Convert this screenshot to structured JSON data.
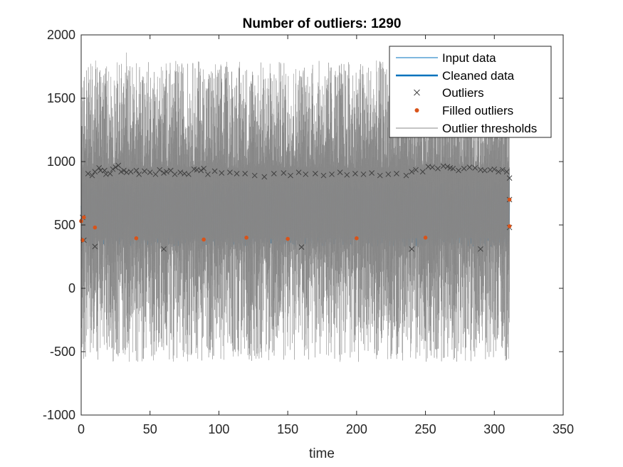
{
  "chart_data": {
    "type": "line",
    "title": "Number of outliers: 1290",
    "xlabel": "time",
    "ylabel": "",
    "xlim": [
      0,
      350
    ],
    "ylim": [
      -1000,
      2000
    ],
    "xticks": [
      0,
      50,
      100,
      150,
      200,
      250,
      300,
      350
    ],
    "yticks": [
      -1000,
      -500,
      0,
      500,
      1000,
      1500,
      2000
    ],
    "grid": false,
    "legend_position": "top-right",
    "x_range_of_data": [
      0,
      311
    ],
    "series": [
      {
        "name": "Input data",
        "color": "#0072BD",
        "style": "thin line",
        "typical_range": [
          330,
          850
        ],
        "peaks": [
          [
            0,
            860
          ],
          [
            6,
            880
          ],
          [
            89,
            900
          ],
          [
            120,
            850
          ],
          [
            240,
            880
          ],
          [
            311,
            900
          ]
        ]
      },
      {
        "name": "Cleaned data",
        "color": "#0072BD",
        "style": "thick line",
        "typical_range": [
          330,
          850
        ]
      },
      {
        "name": "Outliers",
        "color": "#404040",
        "marker": "x",
        "points": [
          [
            1,
            560
          ],
          [
            2,
            380
          ],
          [
            5,
            905
          ],
          [
            8,
            890
          ],
          [
            10,
            920
          ],
          [
            13,
            950
          ],
          [
            14,
            930
          ],
          [
            17,
            930
          ],
          [
            18,
            900
          ],
          [
            21,
            905
          ],
          [
            23,
            940
          ],
          [
            25,
            955
          ],
          [
            27,
            970
          ],
          [
            29,
            920
          ],
          [
            31,
            930
          ],
          [
            33,
            915
          ],
          [
            36,
            920
          ],
          [
            40,
            930
          ],
          [
            42,
            900
          ],
          [
            46,
            925
          ],
          [
            50,
            915
          ],
          [
            54,
            900
          ],
          [
            57,
            935
          ],
          [
            60,
            910
          ],
          [
            62,
            920
          ],
          [
            65,
            930
          ],
          [
            68,
            900
          ],
          [
            72,
            915
          ],
          [
            75,
            905
          ],
          [
            78,
            900
          ],
          [
            82,
            940
          ],
          [
            84,
            935
          ],
          [
            87,
            930
          ],
          [
            89,
            945
          ],
          [
            92,
            900
          ],
          [
            97,
            925
          ],
          [
            102,
            910
          ],
          [
            108,
            915
          ],
          [
            113,
            905
          ],
          [
            119,
            905
          ],
          [
            126,
            890
          ],
          [
            133,
            880
          ],
          [
            140,
            905
          ],
          [
            147,
            910
          ],
          [
            152,
            890
          ],
          [
            158,
            915
          ],
          [
            163,
            900
          ],
          [
            170,
            905
          ],
          [
            176,
            890
          ],
          [
            182,
            900
          ],
          [
            188,
            915
          ],
          [
            193,
            895
          ],
          [
            199,
            905
          ],
          [
            205,
            900
          ],
          [
            211,
            910
          ],
          [
            217,
            890
          ],
          [
            223,
            900
          ],
          [
            229,
            905
          ],
          [
            236,
            890
          ],
          [
            240,
            920
          ],
          [
            243,
            935
          ],
          [
            248,
            920
          ],
          [
            252,
            960
          ],
          [
            255,
            955
          ],
          [
            259,
            945
          ],
          [
            263,
            965
          ],
          [
            266,
            960
          ],
          [
            268,
            950
          ],
          [
            270,
            945
          ],
          [
            274,
            930
          ],
          [
            278,
            945
          ],
          [
            282,
            955
          ],
          [
            286,
            950
          ],
          [
            290,
            935
          ],
          [
            293,
            930
          ],
          [
            297,
            935
          ],
          [
            300,
            940
          ],
          [
            303,
            920
          ],
          [
            306,
            935
          ],
          [
            309,
            920
          ],
          [
            311,
            870
          ],
          [
            311,
            700
          ],
          [
            311,
            480
          ],
          [
            10,
            330
          ],
          [
            60,
            310
          ],
          [
            160,
            325
          ],
          [
            240,
            310
          ],
          [
            290,
            310
          ]
        ]
      },
      {
        "name": "Filled outliers",
        "color": "#D95319",
        "marker": "dot",
        "points": [
          [
            0,
            530
          ],
          [
            1,
            380
          ],
          [
            2,
            560
          ],
          [
            10,
            480
          ],
          [
            40,
            395
          ],
          [
            89,
            385
          ],
          [
            120,
            400
          ],
          [
            150,
            390
          ],
          [
            200,
            395
          ],
          [
            250,
            400
          ],
          [
            311,
            490
          ],
          [
            311,
            700
          ]
        ]
      },
      {
        "name": "Outlier thresholds",
        "color": "#888888",
        "style": "thin line",
        "upper_typical_range": [
          950,
          1800
        ],
        "lower_typical_range": [
          -580,
          400
        ],
        "peak_upper": [
          [
            0,
            1690
          ],
          [
            33,
            1860
          ],
          [
            85,
            1790
          ],
          [
            230,
            1830
          ],
          [
            291,
            1830
          ],
          [
            298,
            1740
          ]
        ],
        "peak_lower": [
          [
            40,
            -570
          ],
          [
            188,
            -580
          ],
          [
            243,
            -555
          ],
          [
            283,
            -575
          ]
        ]
      }
    ]
  }
}
